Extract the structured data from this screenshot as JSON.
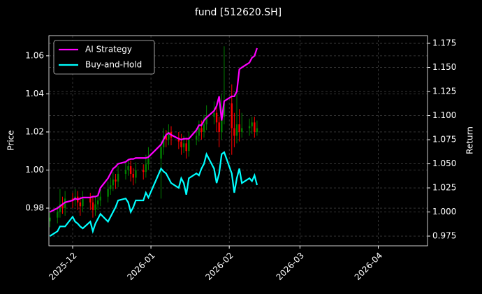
{
  "chart_data": {
    "type": "candlestick",
    "title": "fund [512620.SH]",
    "ylabel": "Price",
    "y2label": "Return",
    "x": [
      -9,
      -6,
      -5,
      -4,
      -3,
      0,
      1,
      2,
      3,
      4,
      7,
      8,
      9,
      10,
      11,
      14,
      15,
      16,
      17,
      18,
      21,
      22,
      23,
      24,
      25,
      28,
      29,
      30,
      35,
      36,
      37,
      38,
      39,
      42,
      43,
      44,
      45,
      46,
      49,
      50,
      51,
      52,
      53,
      56,
      57,
      58,
      59,
      60,
      63,
      64,
      65,
      66,
      67,
      70,
      71,
      72,
      73
    ],
    "open": [
      0.973,
      0.975,
      0.978,
      0.982,
      0.98,
      0.985,
      0.984,
      0.986,
      0.983,
      0.981,
      0.985,
      0.983,
      0.979,
      0.982,
      0.984,
      0.986,
      0.99,
      0.992,
      0.995,
      0.994,
      0.998,
      1.0,
      1.002,
      0.998,
      0.996,
      1.0,
      0.999,
      1.003,
      1.006,
      1.012,
      1.018,
      1.016,
      1.02,
      1.017,
      1.015,
      1.012,
      1.014,
      1.01,
      1.016,
      1.018,
      1.022,
      1.02,
      1.024,
      1.028,
      1.03,
      1.025,
      1.02,
      1.028,
      1.035,
      1.022,
      1.018,
      1.024,
      1.02,
      1.022,
      1.023,
      1.025,
      1.02
    ],
    "high": [
      0.978,
      0.981,
      0.99,
      0.986,
      0.989,
      0.988,
      0.99,
      0.989,
      0.986,
      0.989,
      0.988,
      0.986,
      0.986,
      0.988,
      0.99,
      0.994,
      0.996,
      0.999,
      0.998,
      1.002,
      1.004,
      1.006,
      1.005,
      1.001,
      1.004,
      1.003,
      1.008,
      1.012,
      1.016,
      1.022,
      1.021,
      1.024,
      1.023,
      1.02,
      1.019,
      1.018,
      1.017,
      1.02,
      1.022,
      1.026,
      1.026,
      1.029,
      1.034,
      1.036,
      1.033,
      1.028,
      1.04,
      1.065,
      1.045,
      1.03,
      1.04,
      1.032,
      1.03,
      1.027,
      1.028,
      1.028,
      1.026
    ],
    "low": [
      0.97,
      0.972,
      0.975,
      0.977,
      0.976,
      0.98,
      0.981,
      0.979,
      0.976,
      0.978,
      0.979,
      0.975,
      0.976,
      0.979,
      0.981,
      0.983,
      0.987,
      0.989,
      0.99,
      0.991,
      0.995,
      0.997,
      0.994,
      0.992,
      0.993,
      0.995,
      0.996,
      1.0,
      0.985,
      1.008,
      1.012,
      1.013,
      1.013,
      1.011,
      1.008,
      1.009,
      1.006,
      1.007,
      1.013,
      1.015,
      1.016,
      1.017,
      1.021,
      1.024,
      1.02,
      1.012,
      1.016,
      1.024,
      1.008,
      1.012,
      1.014,
      1.015,
      1.017,
      1.018,
      1.019,
      1.017,
      1.018
    ],
    "close": [
      0.975,
      0.978,
      0.982,
      0.98,
      0.985,
      0.984,
      0.986,
      0.983,
      0.981,
      0.985,
      0.983,
      0.979,
      0.982,
      0.984,
      0.986,
      0.99,
      0.992,
      0.995,
      0.994,
      0.998,
      1.0,
      1.002,
      0.998,
      0.996,
      1.0,
      0.999,
      1.003,
      1.006,
      1.012,
      1.018,
      1.016,
      1.02,
      1.017,
      1.015,
      1.012,
      1.014,
      1.01,
      1.016,
      1.018,
      1.022,
      1.02,
      1.024,
      1.028,
      1.03,
      1.025,
      1.02,
      1.028,
      1.035,
      1.022,
      1.018,
      1.024,
      1.02,
      1.022,
      1.023,
      1.025,
      1.02,
      1.022
    ],
    "up_color": "#008000",
    "down_color": "#ff0000",
    "series": [
      {
        "name": "AI Strategy",
        "color": "#ff00ff",
        "axis": "y2",
        "values": [
          1.0,
          1.004,
          1.006,
          1.008,
          1.01,
          1.012,
          1.014,
          1.013,
          1.014,
          1.015,
          1.015,
          1.016,
          1.016,
          1.017,
          1.025,
          1.035,
          1.04,
          1.045,
          1.047,
          1.05,
          1.052,
          1.054,
          1.055,
          1.055,
          1.056,
          1.056,
          1.056,
          1.057,
          1.07,
          1.075,
          1.08,
          1.082,
          1.08,
          1.076,
          1.075,
          1.076,
          1.076,
          1.076,
          1.085,
          1.09,
          1.09,
          1.095,
          1.098,
          1.105,
          1.11,
          1.12,
          1.095,
          1.115,
          1.12,
          1.12,
          1.125,
          1.148,
          1.15,
          1.155,
          1.16,
          1.162,
          1.17
        ]
      },
      {
        "name": "Buy-and-Hold",
        "color": "#00ffff",
        "axis": "y2",
        "values": [
          0.975,
          0.98,
          0.985,
          0.985,
          0.985,
          0.995,
          0.99,
          0.988,
          0.985,
          0.983,
          0.99,
          0.98,
          0.988,
          0.993,
          0.998,
          0.99,
          0.995,
          1.0,
          1.005,
          1.012,
          1.014,
          1.01,
          1.0,
          1.005,
          1.012,
          1.012,
          1.02,
          1.015,
          1.045,
          1.042,
          1.04,
          1.035,
          1.03,
          1.025,
          1.035,
          1.03,
          1.018,
          1.035,
          1.04,
          1.038,
          1.045,
          1.05,
          1.06,
          1.045,
          1.03,
          1.04,
          1.06,
          1.062,
          1.04,
          1.02,
          1.035,
          1.045,
          1.03,
          1.035,
          1.032,
          1.038,
          1.028
        ]
      }
    ],
    "xlim": [
      -9.4,
      140.5
    ],
    "xticks": [
      {
        "value": 0,
        "label": "2025-12"
      },
      {
        "value": 31,
        "label": "2026-01"
      },
      {
        "value": 62,
        "label": "2026-02"
      },
      {
        "value": 90,
        "label": "2026-03"
      },
      {
        "value": 121,
        "label": "2026-04"
      }
    ],
    "ylim": [
      0.9602,
      1.0706
    ],
    "yticks": [
      0.98,
      {
        "value": 1.0,
        "label": "1.00"
      },
      1.02,
      1.04,
      1.06
    ],
    "y2lim": [
      0.9649,
      1.183
    ],
    "y2ticks": [
      0.975,
      {
        "value": 1.0,
        "label": "1.000"
      },
      1.025,
      {
        "value": 1.05,
        "label": "1.050"
      },
      1.075,
      {
        "value": 1.1,
        "label": "1.100"
      },
      1.125,
      {
        "value": 1.15,
        "label": "1.150"
      },
      1.175
    ],
    "grid": true,
    "legend": "upper left"
  }
}
